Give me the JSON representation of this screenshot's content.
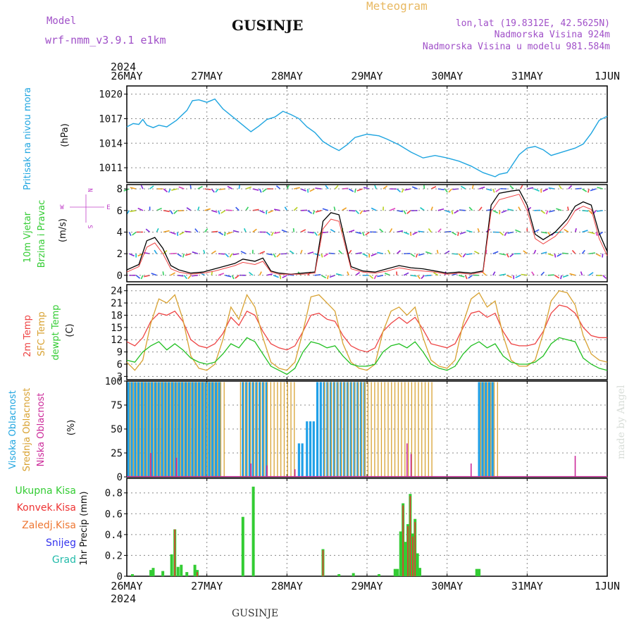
{
  "header": {
    "model_label": "Model",
    "model_name": "wrf-nmm_v3.9.1  e1km",
    "station": "GUSINJE",
    "meteogram_label": "Meteogram",
    "coords": "lon,lat (19.8312E, 42.5625N)",
    "elevation": "Nadmorska Visina 924m",
    "model_elevation": "Nadmorska Visina u modelu 981.584m",
    "year_top": "2024",
    "year_bottom": "2024",
    "footer_station": "GUSINJE",
    "credit": "made by Angel"
  },
  "colors": {
    "pressure": "#1fa5e0",
    "temp2m": "#ee4444",
    "sfc_temp": "#d8a232",
    "dewpt": "#22c022",
    "cloud_high": "#1fa0e8",
    "cloud_mid": "#d8a232",
    "cloud_low": "#cc2a9a",
    "precip_total": "#33cc33",
    "precip_conv": "#ee3333",
    "precip_frozen": "#ee7733",
    "snow": "#3333ee",
    "hail": "#22bbaa",
    "purple_text": "#a050c8",
    "orange_text": "#e8b860"
  },
  "chart_data": [
    {
      "type": "line",
      "x_dates": [
        "26MAY",
        "27MAY",
        "28MAY",
        "29MAY",
        "30MAY",
        "31MAY",
        "1JUN"
      ],
      "ylabel_lines": [
        "Pritisak na nivou mora",
        "(hPa)"
      ],
      "ylim": [
        1009.2,
        1021
      ],
      "yticks": [
        1011,
        1014,
        1017,
        1020
      ],
      "x_days": [
        0,
        0.08,
        0.15,
        0.2,
        0.25,
        0.33,
        0.4,
        0.5,
        0.62,
        0.75,
        0.82,
        0.9,
        1.0,
        1.1,
        1.2,
        1.35,
        1.45,
        1.55,
        1.65,
        1.75,
        1.85,
        1.95,
        2.05,
        2.15,
        2.25,
        2.35,
        2.45,
        2.55,
        2.65,
        2.75,
        2.85,
        3.0,
        3.15,
        3.25,
        3.4,
        3.55,
        3.7,
        3.85,
        4.0,
        4.15,
        4.3,
        4.45,
        4.6,
        4.65,
        4.75,
        4.9,
        5.0,
        5.1,
        5.2,
        5.3,
        5.4,
        5.5,
        5.6,
        5.7,
        5.8,
        5.9,
        6.0
      ],
      "values": [
        1016.0,
        1016.4,
        1016.3,
        1016.9,
        1016.2,
        1015.9,
        1016.2,
        1016.0,
        1016.8,
        1018.0,
        1019.2,
        1019.3,
        1019.0,
        1019.4,
        1018.2,
        1017.0,
        1016.2,
        1015.4,
        1016.1,
        1016.9,
        1017.2,
        1017.9,
        1017.5,
        1017.0,
        1016.0,
        1015.3,
        1014.2,
        1013.6,
        1013.1,
        1013.8,
        1014.7,
        1015.1,
        1014.9,
        1014.5,
        1013.8,
        1012.9,
        1012.2,
        1012.5,
        1012.2,
        1011.8,
        1011.2,
        1010.4,
        1009.9,
        1010.2,
        1010.4,
        1012.6,
        1013.4,
        1013.6,
        1013.2,
        1012.5,
        1012.8,
        1013.1,
        1013.4,
        1013.9,
        1015.2,
        1016.8,
        1017.3
      ],
      "series": [
        {
          "name": "Pritisak na nivou mora",
          "color": "#1fa5e0"
        }
      ]
    },
    {
      "type": "line",
      "ylabel_lines": [
        "10m Vjetar",
        "Brzina i Pravac",
        "(m/s)"
      ],
      "ylim": [
        -0.6,
        8.4
      ],
      "yticks": [
        0,
        2,
        4,
        6,
        8
      ],
      "compass": {
        "north": "N",
        "east": "E",
        "west": "W",
        "south": "S"
      },
      "x_days": [
        0,
        0.15,
        0.25,
        0.35,
        0.45,
        0.55,
        0.65,
        0.8,
        0.95,
        1.1,
        1.25,
        1.35,
        1.45,
        1.6,
        1.7,
        1.8,
        1.9,
        2.05,
        2.2,
        2.35,
        2.45,
        2.55,
        2.65,
        2.8,
        2.95,
        3.1,
        3.25,
        3.4,
        3.55,
        3.7,
        3.85,
        4.0,
        4.15,
        4.3,
        4.45,
        4.55,
        4.65,
        4.8,
        4.9,
        5.0,
        5.1,
        5.2,
        5.35,
        5.5,
        5.6,
        5.7,
        5.8,
        5.9,
        6.0
      ],
      "speed": [
        0.5,
        1.0,
        3.2,
        3.5,
        2.5,
        0.9,
        0.5,
        0.2,
        0.3,
        0.6,
        0.9,
        1.1,
        1.5,
        1.3,
        1.6,
        0.4,
        0.2,
        0.1,
        0.2,
        0.3,
        5.0,
        5.8,
        5.6,
        0.8,
        0.4,
        0.3,
        0.6,
        0.9,
        0.7,
        0.6,
        0.4,
        0.2,
        0.3,
        0.2,
        0.4,
        6.5,
        7.6,
        7.8,
        7.9,
        6.5,
        3.8,
        3.3,
        4.0,
        5.2,
        6.4,
        6.8,
        6.5,
        3.9,
        2.2
      ],
      "gust": [
        0.3,
        0.8,
        2.6,
        3.0,
        2.0,
        0.6,
        0.3,
        0.1,
        0.2,
        0.4,
        0.7,
        0.9,
        1.2,
        1.0,
        1.3,
        0.3,
        0.1,
        0.1,
        0.1,
        0.2,
        4.3,
        5.2,
        5.0,
        0.6,
        0.3,
        0.2,
        0.4,
        0.7,
        0.5,
        0.4,
        0.3,
        0.1,
        0.2,
        0.1,
        0.3,
        5.9,
        7.0,
        7.3,
        7.5,
        6.0,
        3.4,
        2.9,
        3.6,
        4.8,
        6.0,
        6.4,
        6.1,
        3.4,
        1.8
      ]
    },
    {
      "type": "line",
      "ylabel_lines": [
        "2m Temp",
        "SFC Temp",
        "dewpt Temp",
        "(C)"
      ],
      "ylim": [
        2.2,
        25.5
      ],
      "yticks": [
        3,
        6,
        9,
        12,
        15,
        18,
        21,
        24
      ],
      "x_days": [
        0,
        0.1,
        0.2,
        0.3,
        0.4,
        0.5,
        0.6,
        0.7,
        0.8,
        0.9,
        1.0,
        1.1,
        1.2,
        1.3,
        1.4,
        1.5,
        1.6,
        1.7,
        1.8,
        1.9,
        2.0,
        2.1,
        2.2,
        2.3,
        2.4,
        2.5,
        2.6,
        2.7,
        2.8,
        2.9,
        3.0,
        3.1,
        3.2,
        3.3,
        3.4,
        3.5,
        3.6,
        3.7,
        3.8,
        3.9,
        4.0,
        4.1,
        4.2,
        4.3,
        4.4,
        4.5,
        4.6,
        4.7,
        4.8,
        4.9,
        5.0,
        5.1,
        5.2,
        5.3,
        5.4,
        5.5,
        5.6,
        5.7,
        5.8,
        5.9,
        6.0
      ],
      "series": [
        {
          "name": "2m Temp",
          "color": "#ee4444",
          "values": [
            11.5,
            10.5,
            12.5,
            16.5,
            18.5,
            18.0,
            19.0,
            16.5,
            12.0,
            10.5,
            10.0,
            11.0,
            13.5,
            17.5,
            15.5,
            19.0,
            18.0,
            14.0,
            11.0,
            10.0,
            9.5,
            10.5,
            14.0,
            18.0,
            18.5,
            17.0,
            16.5,
            13.0,
            10.5,
            9.5,
            9.0,
            10.0,
            14.0,
            16.0,
            17.5,
            16.0,
            17.5,
            14.5,
            11.0,
            10.5,
            10.0,
            11.0,
            15.0,
            18.5,
            19.0,
            17.5,
            18.5,
            14.0,
            11.0,
            10.5,
            10.5,
            11.0,
            14.0,
            18.5,
            20.5,
            20.0,
            18.5,
            15.0,
            13.0,
            12.5,
            12.5
          ]
        },
        {
          "name": "SFC Temp",
          "color": "#d8a232",
          "values": [
            6.5,
            4.5,
            7.0,
            16.0,
            22.0,
            21.0,
            23.0,
            17.0,
            8.0,
            5.0,
            4.5,
            6.0,
            12.0,
            20.0,
            17.0,
            23.0,
            20.0,
            12.5,
            6.5,
            5.0,
            4.5,
            6.5,
            14.0,
            22.5,
            23.0,
            21.0,
            19.0,
            11.0,
            6.5,
            5.0,
            4.5,
            6.0,
            14.0,
            19.0,
            20.0,
            18.0,
            20.0,
            12.5,
            7.0,
            5.5,
            5.0,
            7.0,
            16.0,
            22.0,
            23.5,
            20.0,
            21.5,
            13.0,
            7.0,
            5.5,
            5.5,
            7.0,
            13.5,
            21.5,
            24.0,
            23.5,
            20.5,
            13.0,
            8.5,
            7.0,
            6.5
          ]
        },
        {
          "name": "dewpt Temp",
          "color": "#22c022",
          "values": [
            7.0,
            6.5,
            9.0,
            10.5,
            11.5,
            9.5,
            11.0,
            9.5,
            7.5,
            6.5,
            6.0,
            6.5,
            8.5,
            11.0,
            10.0,
            12.5,
            11.5,
            8.5,
            5.5,
            4.5,
            3.5,
            5.0,
            9.0,
            11.5,
            11.0,
            10.0,
            10.5,
            8.0,
            6.0,
            5.5,
            5.5,
            6.0,
            9.0,
            10.5,
            11.0,
            10.0,
            11.5,
            9.0,
            6.0,
            5.0,
            4.5,
            5.5,
            8.5,
            10.5,
            11.5,
            10.0,
            11.0,
            8.0,
            6.5,
            6.0,
            6.0,
            6.5,
            8.0,
            11.0,
            12.5,
            12.0,
            11.5,
            7.5,
            6.0,
            5.0,
            4.5
          ]
        }
      ]
    },
    {
      "type": "bar",
      "ylabel_lines": [
        "Visoka Oblacnost",
        "Srednja Oblacnost",
        "Niska Oblacnost",
        "(%)"
      ],
      "ylim": [
        0,
        100
      ],
      "yticks": [
        0,
        25,
        50,
        75,
        100
      ],
      "series": [
        {
          "name": "Visoka Oblacnost",
          "color": "#1fa0e8",
          "segments": [
            {
              "start": 0.02,
              "end": 1.18,
              "value": 99
            },
            {
              "start": 1.45,
              "end": 1.75,
              "value": 99
            },
            {
              "start": 2.15,
              "end": 2.2,
              "value": 35
            },
            {
              "start": 2.25,
              "end": 2.35,
              "value": 58
            },
            {
              "start": 2.38,
              "end": 3.0,
              "value": 99
            },
            {
              "start": 4.4,
              "end": 4.6,
              "value": 99
            }
          ]
        },
        {
          "name": "Srednja Oblacnost",
          "color": "#d8a232",
          "segments": [
            {
              "start": 0.02,
              "end": 1.25,
              "value": 99
            },
            {
              "start": 1.4,
              "end": 2.1,
              "value": 99
            },
            {
              "start": 2.45,
              "end": 3.0,
              "value": 99
            },
            {
              "start": 2.95,
              "end": 3.85,
              "value": 99
            },
            {
              "start": 4.4,
              "end": 4.65,
              "value": 99
            }
          ]
        },
        {
          "name": "Niska Oblacnost",
          "color": "#cc2a9a",
          "points": [
            {
              "day": 0.3,
              "value": 25
            },
            {
              "day": 0.62,
              "value": 20
            },
            {
              "day": 1.55,
              "value": 14
            },
            {
              "day": 1.75,
              "value": 12
            },
            {
              "day": 2.1,
              "value": 8
            },
            {
              "day": 3.5,
              "value": 35
            },
            {
              "day": 3.55,
              "value": 24
            },
            {
              "day": 4.3,
              "value": 14
            },
            {
              "day": 5.6,
              "value": 22
            }
          ]
        }
      ]
    },
    {
      "type": "bar",
      "ylabel": "1hr Precip (mm)",
      "legend": [
        "Ukupna Kisa",
        "Konvek.Kisa",
        "Zaledj.Kisa",
        "Snijeg",
        "Grad"
      ],
      "ylim": [
        0,
        0.94
      ],
      "yticks": [
        0,
        0.2,
        0.4,
        0.6,
        0.8
      ],
      "ytick_labels": [
        "0",
        "0.2",
        "0.4",
        "0.6",
        "0.8"
      ],
      "series": [
        {
          "name": "Ukupna Kisa",
          "color": "#33cc33",
          "points": [
            {
              "day": 0.07,
              "value": 0.02
            },
            {
              "day": 0.3,
              "value": 0.06
            },
            {
              "day": 0.33,
              "value": 0.08
            },
            {
              "day": 0.45,
              "value": 0.05
            },
            {
              "day": 0.56,
              "value": 0.21
            },
            {
              "day": 0.6,
              "value": 0.45
            },
            {
              "day": 0.64,
              "value": 0.09
            },
            {
              "day": 0.68,
              "value": 0.11
            },
            {
              "day": 0.75,
              "value": 0.04
            },
            {
              "day": 0.85,
              "value": 0.11
            },
            {
              "day": 0.88,
              "value": 0.06
            },
            {
              "day": 1.45,
              "value": 0.57
            },
            {
              "day": 1.58,
              "value": 0.86
            },
            {
              "day": 2.45,
              "value": 0.26
            },
            {
              "day": 2.65,
              "value": 0.02
            },
            {
              "day": 2.83,
              "value": 0.03
            },
            {
              "day": 3.15,
              "value": 0.02
            },
            {
              "day": 3.35,
              "value": 0.07
            },
            {
              "day": 3.38,
              "value": 0.07
            },
            {
              "day": 3.42,
              "value": 0.43
            },
            {
              "day": 3.45,
              "value": 0.7
            },
            {
              "day": 3.48,
              "value": 0.33
            },
            {
              "day": 3.51,
              "value": 0.5
            },
            {
              "day": 3.54,
              "value": 0.79
            },
            {
              "day": 3.57,
              "value": 0.41
            },
            {
              "day": 3.6,
              "value": 0.55
            },
            {
              "day": 3.63,
              "value": 0.22
            },
            {
              "day": 3.66,
              "value": 0.08
            },
            {
              "day": 4.37,
              "value": 0.07
            },
            {
              "day": 4.4,
              "value": 0.07
            }
          ]
        },
        {
          "name": "Konvek.Kisa",
          "color": "#ee3333",
          "points": [
            {
              "day": 0.6,
              "value": 0.45
            },
            {
              "day": 0.88,
              "value": 0.04
            },
            {
              "day": 2.45,
              "value": 0.25
            },
            {
              "day": 3.45,
              "value": 0.68
            },
            {
              "day": 3.51,
              "value": 0.48
            },
            {
              "day": 3.54,
              "value": 0.77
            },
            {
              "day": 3.57,
              "value": 0.38
            },
            {
              "day": 3.6,
              "value": 0.52
            }
          ]
        }
      ]
    }
  ]
}
